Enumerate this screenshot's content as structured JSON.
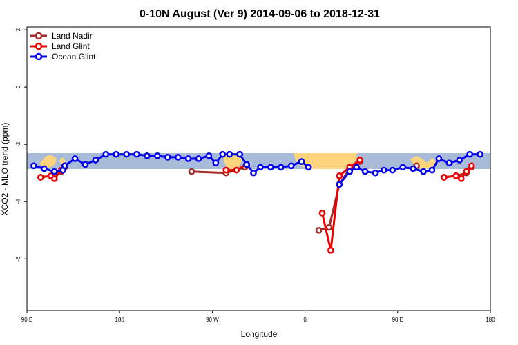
{
  "chart_data": {
    "type": "line",
    "title": "0-10N August (Ver 9)   2014-09-06 to 2018-12-31",
    "xlabel": "Longitude",
    "ylabel": "XCO2 - MLO trend (ppm)",
    "xlim": [
      -90,
      180
    ],
    "ylim": [
      -7.8,
      2.1
    ],
    "x_ticks": [
      {
        "value": -90,
        "label": "90 E"
      },
      {
        "value": -36,
        "label": "180"
      },
      {
        "value": 18,
        "label": "90 W"
      },
      {
        "value": 72,
        "label": "0"
      },
      {
        "value": 126,
        "label": "90 E"
      },
      {
        "value": 180,
        "label": "180"
      }
    ],
    "y_ticks": [
      {
        "value": 2,
        "label": "2"
      },
      {
        "value": 0,
        "label": "0"
      },
      {
        "value": -2,
        "label": "-2"
      },
      {
        "value": -4,
        "label": "-4"
      },
      {
        "value": -6,
        "label": "-6"
      }
    ],
    "legend_position": "top-left",
    "grid": false,
    "series": [
      {
        "name": "Land Nadir",
        "color": "#a52a2a",
        "segments": [
          [
            [
              -82,
              -3.15
            ],
            [
              -76,
              -3.1
            ],
            [
              -70,
              -2.95
            ],
            [
              -68,
              -2.8
            ]
          ],
          [
            [
              6,
              -2.95
            ],
            [
              26,
              -3.0
            ],
            [
              32,
              -2.9
            ],
            [
              37,
              -2.8
            ]
          ],
          [
            [
              80,
              -5.0
            ],
            [
              86,
              -4.9
            ],
            [
              92,
              -3.4
            ],
            [
              98,
              -2.85
            ],
            [
              104,
              -2.6
            ]
          ],
          [
            [
              137,
              -2.75
            ]
          ],
          [
            [
              153,
              -3.15
            ],
            [
              160,
              -3.1
            ],
            [
              166,
              -3.0
            ],
            [
              169,
              -2.8
            ]
          ]
        ]
      },
      {
        "name": "Land Glint",
        "color": "#ee0000",
        "segments": [
          [
            [
              -82,
              -3.15
            ],
            [
              -76,
              -3.1
            ],
            [
              -74,
              -3.2
            ],
            [
              -70,
              -2.9
            ],
            [
              -68,
              -2.75
            ]
          ],
          [
            [
              26,
              -2.9
            ],
            [
              32,
              -2.9
            ],
            [
              38,
              -2.7
            ]
          ],
          [
            [
              82,
              -4.4
            ],
            [
              87,
              -5.7
            ],
            [
              92,
              -3.1
            ],
            [
              98,
              -2.8
            ],
            [
              104,
              -2.55
            ]
          ],
          [
            [
              153,
              -3.15
            ],
            [
              160,
              -3.1
            ],
            [
              163,
              -3.2
            ],
            [
              166,
              -2.95
            ],
            [
              169,
              -2.75
            ]
          ]
        ]
      },
      {
        "name": "Ocean Glint",
        "color": "#0000ee",
        "segments": [
          [
            [
              -86,
              -2.75
            ],
            [
              -80,
              -2.85
            ],
            [
              -74,
              -2.95
            ],
            [
              -69,
              -2.9
            ],
            [
              -68,
              -2.75
            ],
            [
              -62,
              -2.5
            ],
            [
              -56,
              -2.7
            ],
            [
              -50,
              -2.55
            ],
            [
              -44,
              -2.35
            ],
            [
              -38,
              -2.35
            ],
            [
              -32,
              -2.35
            ],
            [
              -26,
              -2.35
            ],
            [
              -20,
              -2.4
            ],
            [
              -14,
              -2.4
            ],
            [
              -8,
              -2.45
            ],
            [
              -2,
              -2.45
            ],
            [
              4,
              -2.5
            ],
            [
              10,
              -2.5
            ],
            [
              16,
              -2.4
            ],
            [
              20,
              -2.65
            ],
            [
              24,
              -2.35
            ],
            [
              28,
              -2.35
            ],
            [
              34,
              -2.35
            ],
            [
              38,
              -2.7
            ],
            [
              42,
              -3.0
            ],
            [
              46,
              -2.8
            ],
            [
              52,
              -2.8
            ],
            [
              58,
              -2.8
            ],
            [
              64,
              -2.75
            ],
            [
              70,
              -2.6
            ],
            [
              74,
              -2.8
            ]
          ],
          [
            [
              92,
              -3.4
            ],
            [
              98,
              -2.95
            ],
            [
              102,
              -2.8
            ],
            [
              107,
              -2.95
            ],
            [
              113,
              -3.0
            ],
            [
              118,
              -2.9
            ],
            [
              123,
              -2.9
            ],
            [
              129,
              -2.8
            ],
            [
              135,
              -2.85
            ],
            [
              141,
              -2.95
            ],
            [
              146,
              -2.9
            ],
            [
              150,
              -2.5
            ],
            [
              156,
              -2.65
            ],
            [
              162,
              -2.55
            ],
            [
              168,
              -2.35
            ],
            [
              174,
              -2.35
            ]
          ]
        ]
      }
    ]
  }
}
